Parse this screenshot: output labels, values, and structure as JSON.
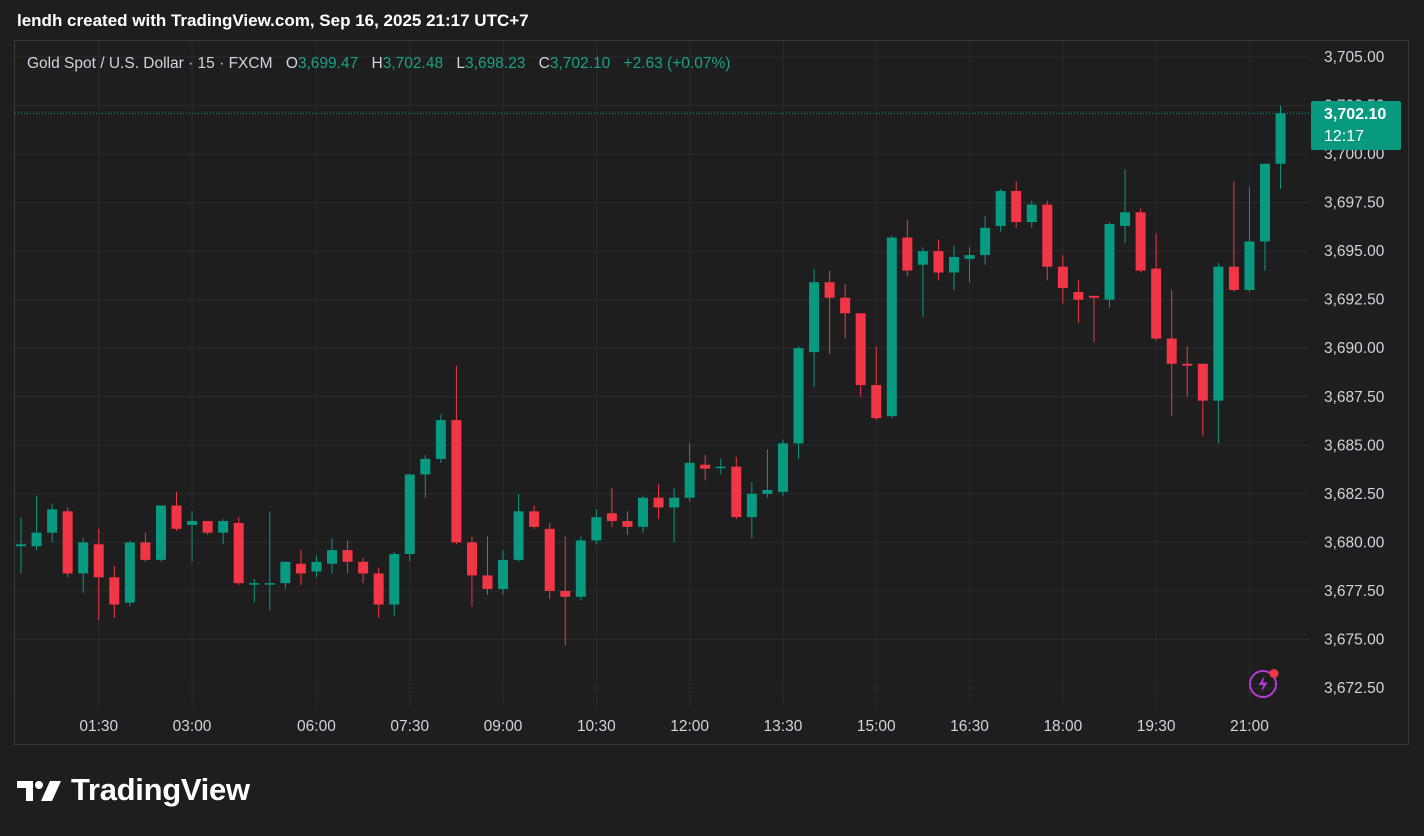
{
  "header": {
    "caption": "lendh created with TradingView.com, Sep 16, 2025 21:17 UTC+7"
  },
  "legend": {
    "symbol": "Gold Spot / U.S. Dollar · 15 · FXCM",
    "o_label": "O",
    "o_value": "3,699.47",
    "h_label": "H",
    "h_value": "3,702.48",
    "l_label": "L",
    "l_value": "3,698.23",
    "c_label": "C",
    "c_value": "3,702.10",
    "change": "+2.63 (+0.07%)"
  },
  "price_tag": {
    "price": "3,702.10",
    "countdown": "12:17"
  },
  "icons": {
    "alert": "lightning-alert-icon",
    "brand": "tradingview-logo-icon"
  },
  "brand": {
    "name": "TradingView"
  },
  "colors": {
    "background": "#1e1e1e",
    "up": "#089981",
    "down": "#f23645",
    "grid": "#2b2b2b",
    "axis_text": "#d1d4dc",
    "alert_icon": "#b43bd6"
  },
  "chart_data": {
    "type": "candlestick",
    "title": "Gold Spot / U.S. Dollar · 15 · FXCM",
    "interval": "15",
    "ylim": [
      3671.6,
      3706.0
    ],
    "y_ticks": [
      3705.0,
      3702.5,
      3700.0,
      3697.5,
      3695.0,
      3692.5,
      3690.0,
      3687.5,
      3685.0,
      3682.5,
      3680.0,
      3677.5,
      3675.0,
      3672.5
    ],
    "y_tick_labels": [
      "3,705.00",
      "3,702.50",
      "3,700.00",
      "3,697.50",
      "3,695.00",
      "3,692.50",
      "3,690.00",
      "3,687.50",
      "3,685.00",
      "3,682.50",
      "3,680.00",
      "3,677.50",
      "3,675.00",
      "3,672.50"
    ],
    "x_ticks": [
      {
        "label": "01:30",
        "index": 5
      },
      {
        "label": "03:00",
        "index": 11
      },
      {
        "label": "06:00",
        "index": 19
      },
      {
        "label": "07:30",
        "index": 25
      },
      {
        "label": "09:00",
        "index": 31
      },
      {
        "label": "10:30",
        "index": 37
      },
      {
        "label": "12:00",
        "index": 43
      },
      {
        "label": "13:30",
        "index": 49
      },
      {
        "label": "15:00",
        "index": 55
      },
      {
        "label": "16:30",
        "index": 61
      },
      {
        "label": "18:00",
        "index": 67
      },
      {
        "label": "19:30",
        "index": 73
      },
      {
        "label": "21:00",
        "index": 79
      }
    ],
    "last_price": 3702.1,
    "candles": [
      {
        "o": 3679.8,
        "h": 3681.3,
        "l": 3678.4,
        "c": 3679.9
      },
      {
        "o": 3679.8,
        "h": 3682.4,
        "l": 3679.6,
        "c": 3680.5
      },
      {
        "o": 3680.5,
        "h": 3682.0,
        "l": 3680.0,
        "c": 3681.7
      },
      {
        "o": 3681.6,
        "h": 3681.8,
        "l": 3678.2,
        "c": 3678.4
      },
      {
        "o": 3678.4,
        "h": 3680.2,
        "l": 3677.4,
        "c": 3680.0
      },
      {
        "o": 3679.9,
        "h": 3680.7,
        "l": 3676.0,
        "c": 3678.2
      },
      {
        "o": 3678.2,
        "h": 3678.8,
        "l": 3676.1,
        "c": 3676.8
      },
      {
        "o": 3676.9,
        "h": 3680.1,
        "l": 3676.7,
        "c": 3680.0
      },
      {
        "o": 3680.0,
        "h": 3680.5,
        "l": 3679.0,
        "c": 3679.1
      },
      {
        "o": 3679.1,
        "h": 3681.9,
        "l": 3679.0,
        "c": 3681.9
      },
      {
        "o": 3681.9,
        "h": 3682.6,
        "l": 3680.6,
        "c": 3680.7
      },
      {
        "o": 3680.9,
        "h": 3681.6,
        "l": 3679.0,
        "c": 3681.1
      },
      {
        "o": 3681.1,
        "h": 3681.1,
        "l": 3680.4,
        "c": 3680.5
      },
      {
        "o": 3680.5,
        "h": 3681.2,
        "l": 3679.9,
        "c": 3681.1
      },
      {
        "o": 3681.0,
        "h": 3681.3,
        "l": 3677.8,
        "c": 3677.9
      },
      {
        "o": 3677.9,
        "h": 3678.1,
        "l": 3676.9,
        "c": 3677.9
      },
      {
        "o": 3677.9,
        "h": 3681.6,
        "l": 3676.5,
        "c": 3677.9
      },
      {
        "o": 3677.9,
        "h": 3679.0,
        "l": 3677.6,
        "c": 3679.0
      },
      {
        "o": 3678.9,
        "h": 3679.6,
        "l": 3677.8,
        "c": 3678.4
      },
      {
        "o": 3678.5,
        "h": 3679.3,
        "l": 3678.2,
        "c": 3679.0
      },
      {
        "o": 3678.9,
        "h": 3680.2,
        "l": 3678.4,
        "c": 3679.6
      },
      {
        "o": 3679.6,
        "h": 3680.1,
        "l": 3678.4,
        "c": 3679.0
      },
      {
        "o": 3679.0,
        "h": 3679.2,
        "l": 3677.9,
        "c": 3678.4
      },
      {
        "o": 3678.4,
        "h": 3678.7,
        "l": 3676.1,
        "c": 3676.8
      },
      {
        "o": 3676.8,
        "h": 3679.5,
        "l": 3676.2,
        "c": 3679.4
      },
      {
        "o": 3679.4,
        "h": 3683.4,
        "l": 3679.0,
        "c": 3683.5
      },
      {
        "o": 3683.5,
        "h": 3684.5,
        "l": 3682.3,
        "c": 3684.3
      },
      {
        "o": 3684.3,
        "h": 3686.6,
        "l": 3684.1,
        "c": 3686.3
      },
      {
        "o": 3686.3,
        "h": 3689.1,
        "l": 3679.9,
        "c": 3680.0
      },
      {
        "o": 3680.0,
        "h": 3680.3,
        "l": 3676.7,
        "c": 3678.3
      },
      {
        "o": 3678.3,
        "h": 3680.3,
        "l": 3677.3,
        "c": 3677.6
      },
      {
        "o": 3677.6,
        "h": 3679.6,
        "l": 3677.3,
        "c": 3679.1
      },
      {
        "o": 3679.1,
        "h": 3682.5,
        "l": 3679.0,
        "c": 3681.6
      },
      {
        "o": 3681.6,
        "h": 3681.9,
        "l": 3680.7,
        "c": 3680.8
      },
      {
        "o": 3680.7,
        "h": 3681.0,
        "l": 3677.1,
        "c": 3677.5
      },
      {
        "o": 3677.5,
        "h": 3680.3,
        "l": 3674.7,
        "c": 3677.2
      },
      {
        "o": 3677.2,
        "h": 3680.3,
        "l": 3677.0,
        "c": 3680.1
      },
      {
        "o": 3680.1,
        "h": 3681.7,
        "l": 3679.9,
        "c": 3681.3
      },
      {
        "o": 3681.5,
        "h": 3682.8,
        "l": 3680.8,
        "c": 3681.1
      },
      {
        "o": 3681.1,
        "h": 3681.6,
        "l": 3680.4,
        "c": 3680.8
      },
      {
        "o": 3680.8,
        "h": 3682.4,
        "l": 3680.5,
        "c": 3682.3
      },
      {
        "o": 3682.3,
        "h": 3683.0,
        "l": 3681.2,
        "c": 3681.8
      },
      {
        "o": 3681.8,
        "h": 3682.8,
        "l": 3680.0,
        "c": 3682.3
      },
      {
        "o": 3682.3,
        "h": 3685.1,
        "l": 3682.1,
        "c": 3684.1
      },
      {
        "o": 3684.0,
        "h": 3684.5,
        "l": 3683.2,
        "c": 3683.8
      },
      {
        "o": 3683.9,
        "h": 3684.3,
        "l": 3683.5,
        "c": 3683.9
      },
      {
        "o": 3683.9,
        "h": 3684.4,
        "l": 3681.2,
        "c": 3681.3
      },
      {
        "o": 3681.3,
        "h": 3683.1,
        "l": 3680.2,
        "c": 3682.5
      },
      {
        "o": 3682.5,
        "h": 3684.8,
        "l": 3682.3,
        "c": 3682.7
      },
      {
        "o": 3682.6,
        "h": 3685.3,
        "l": 3682.4,
        "c": 3685.1
      },
      {
        "o": 3685.1,
        "h": 3690.1,
        "l": 3684.3,
        "c": 3690.0
      },
      {
        "o": 3689.8,
        "h": 3694.1,
        "l": 3688.0,
        "c": 3693.4
      },
      {
        "o": 3693.4,
        "h": 3694.0,
        "l": 3689.7,
        "c": 3692.6
      },
      {
        "o": 3692.6,
        "h": 3693.3,
        "l": 3690.5,
        "c": 3691.8
      },
      {
        "o": 3691.8,
        "h": 3691.8,
        "l": 3687.5,
        "c": 3688.1
      },
      {
        "o": 3688.1,
        "h": 3690.1,
        "l": 3686.3,
        "c": 3686.4
      },
      {
        "o": 3686.5,
        "h": 3695.8,
        "l": 3686.4,
        "c": 3695.7
      },
      {
        "o": 3695.7,
        "h": 3696.6,
        "l": 3693.7,
        "c": 3694.0
      },
      {
        "o": 3694.3,
        "h": 3695.2,
        "l": 3691.6,
        "c": 3695.0
      },
      {
        "o": 3695.0,
        "h": 3695.6,
        "l": 3693.5,
        "c": 3693.9
      },
      {
        "o": 3693.9,
        "h": 3695.3,
        "l": 3693.0,
        "c": 3694.7
      },
      {
        "o": 3694.6,
        "h": 3695.2,
        "l": 3693.4,
        "c": 3694.8
      },
      {
        "o": 3694.8,
        "h": 3696.8,
        "l": 3694.3,
        "c": 3696.2
      },
      {
        "o": 3696.3,
        "h": 3698.2,
        "l": 3696.0,
        "c": 3698.1
      },
      {
        "o": 3698.1,
        "h": 3698.6,
        "l": 3696.2,
        "c": 3696.5
      },
      {
        "o": 3696.5,
        "h": 3697.6,
        "l": 3696.2,
        "c": 3697.4
      },
      {
        "o": 3697.4,
        "h": 3697.6,
        "l": 3693.5,
        "c": 3694.2
      },
      {
        "o": 3694.2,
        "h": 3694.8,
        "l": 3692.3,
        "c": 3693.1
      },
      {
        "o": 3692.9,
        "h": 3693.5,
        "l": 3691.3,
        "c": 3692.5
      },
      {
        "o": 3692.7,
        "h": 3692.7,
        "l": 3690.3,
        "c": 3692.6
      },
      {
        "o": 3692.5,
        "h": 3696.5,
        "l": 3692.1,
        "c": 3696.4
      },
      {
        "o": 3696.3,
        "h": 3699.2,
        "l": 3695.4,
        "c": 3697.0
      },
      {
        "o": 3697.0,
        "h": 3697.2,
        "l": 3693.9,
        "c": 3694.0
      },
      {
        "o": 3694.1,
        "h": 3695.9,
        "l": 3690.4,
        "c": 3690.5
      },
      {
        "o": 3690.5,
        "h": 3693.0,
        "l": 3686.5,
        "c": 3689.2
      },
      {
        "o": 3689.2,
        "h": 3690.1,
        "l": 3687.5,
        "c": 3689.1
      },
      {
        "o": 3689.2,
        "h": 3689.2,
        "l": 3685.5,
        "c": 3687.3
      },
      {
        "o": 3687.3,
        "h": 3694.4,
        "l": 3685.1,
        "c": 3694.2
      },
      {
        "o": 3694.2,
        "h": 3698.6,
        "l": 3692.9,
        "c": 3693.0
      },
      {
        "o": 3693.0,
        "h": 3698.3,
        "l": 3692.9,
        "c": 3695.5
      },
      {
        "o": 3695.5,
        "h": 3699.5,
        "l": 3694.0,
        "c": 3699.5
      },
      {
        "o": 3699.5,
        "h": 3702.5,
        "l": 3698.2,
        "c": 3702.1
      }
    ]
  }
}
